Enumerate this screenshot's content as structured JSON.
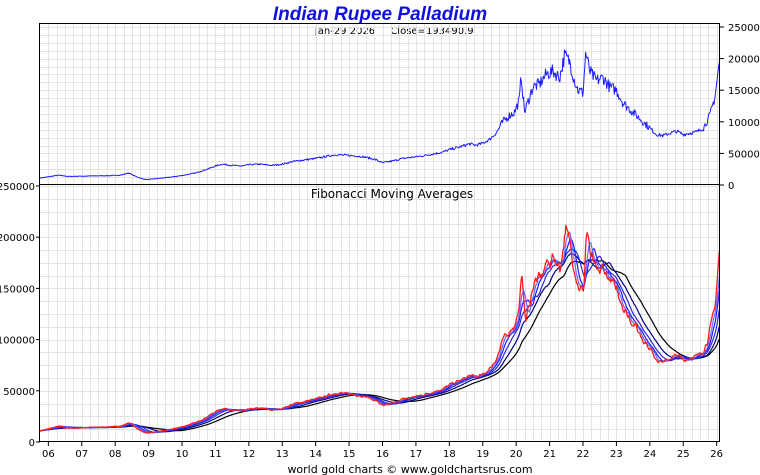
{
  "title": "Indian Rupee Palladium",
  "subtitle_date": "Jan-29  2026",
  "subtitle_close": "Close=193490.9",
  "footer": "world gold charts © www.goldchartsrus.com",
  "colors": {
    "title": "#1010e0",
    "price": "#1a1aff",
    "price_lower": "#ff1a1a"
  },
  "chart_data": [
    {
      "type": "line",
      "title": "Indian Rupee Palladium",
      "xlabel": "",
      "ylabel": "",
      "x_ticks": [
        "06",
        "07",
        "08",
        "09",
        "10",
        "11",
        "12",
        "13",
        "14",
        "15",
        "16",
        "17",
        "18",
        "19",
        "20",
        "21",
        "22",
        "23",
        "24",
        "25",
        "26"
      ],
      "x_range": [
        2005.75,
        2026.1
      ],
      "ylim": [
        0,
        250000
      ],
      "y_ticks": [
        0,
        50000,
        100000,
        150000,
        200000,
        250000
      ],
      "y_tick_labels": [
        "0",
        "50000",
        "100000",
        "150000",
        "200000",
        "250000"
      ],
      "y_axis_side": "right",
      "series": [
        {
          "name": "Close",
          "color": "#1a1aff",
          "x": [
            2005.75,
            2006.0,
            2006.3,
            2006.6,
            2007.0,
            2007.5,
            2008.0,
            2008.2,
            2008.4,
            2008.6,
            2008.8,
            2008.95,
            2009.2,
            2009.6,
            2010.0,
            2010.4,
            2010.7,
            2011.0,
            2011.2,
            2011.5,
            2011.8,
            2012.0,
            2012.3,
            2012.7,
            2013.0,
            2013.3,
            2013.7,
            2014.0,
            2014.3,
            2014.6,
            2014.9,
            2015.2,
            2015.5,
            2015.8,
            2016.0,
            2016.3,
            2016.6,
            2016.9,
            2017.2,
            2017.5,
            2017.8,
            2018.0,
            2018.3,
            2018.6,
            2018.8,
            2019.0,
            2019.2,
            2019.4,
            2019.6,
            2019.8,
            2019.95,
            2020.1,
            2020.15,
            2020.25,
            2020.5,
            2020.7,
            2020.9,
            2021.1,
            2021.3,
            2021.45,
            2021.6,
            2021.75,
            2021.85,
            2021.95,
            2022.0,
            2022.08,
            2022.2,
            2022.4,
            2022.6,
            2022.8,
            2023.0,
            2023.2,
            2023.5,
            2023.8,
            2024.0,
            2024.2,
            2024.4,
            2024.6,
            2024.8,
            2025.0,
            2025.2,
            2025.4,
            2025.6,
            2025.8,
            2025.95,
            2026.08
          ],
          "y": [
            11000,
            13000,
            15500,
            13500,
            14000,
            14500,
            15000,
            16000,
            19000,
            14000,
            10000,
            8500,
            10000,
            12000,
            15000,
            19000,
            24000,
            30000,
            33000,
            31000,
            30000,
            32000,
            33000,
            31000,
            33000,
            37000,
            40000,
            42000,
            45000,
            48000,
            47000,
            46000,
            44000,
            40000,
            35000,
            38000,
            42000,
            44000,
            46000,
            49000,
            52000,
            56000,
            60000,
            65000,
            63000,
            66000,
            72000,
            82000,
            100000,
            110000,
            115000,
            135000,
            175000,
            115000,
            155000,
            160000,
            175000,
            180000,
            170000,
            205000,
            195000,
            165000,
            150000,
            148000,
            145000,
            210000,
            180000,
            165000,
            170000,
            155000,
            150000,
            130000,
            115000,
            100000,
            90000,
            80000,
            78000,
            82000,
            85000,
            80000,
            82000,
            84000,
            90000,
            110000,
            140000,
            193490
          ]
        },
        {
          "name": "Fibonacci Moving Averages",
          "description_colors": [
            "#ff1a1a",
            "#1a1aff",
            "#000000"
          ],
          "note": "multiple moving averages of the same Close series (lengths follow Fibonacci numbers)"
        }
      ]
    },
    {
      "type": "line",
      "title": "Fibonacci Moving Averages",
      "ylim": [
        0,
        250000
      ],
      "y_ticks": [
        0,
        50000,
        100000,
        150000,
        200000,
        250000
      ],
      "y_tick_labels": [
        "0",
        "50000",
        "100000",
        "150000",
        "200000",
        "250000"
      ],
      "y_axis_side": "left",
      "ma_windows": [
        1,
        3,
        5,
        8,
        13,
        21
      ],
      "ma_colors": [
        "#ff1a1a",
        "#6a6aff",
        "#1a1aff",
        "#2a2acc",
        "#00008a",
        "#000000"
      ]
    }
  ]
}
